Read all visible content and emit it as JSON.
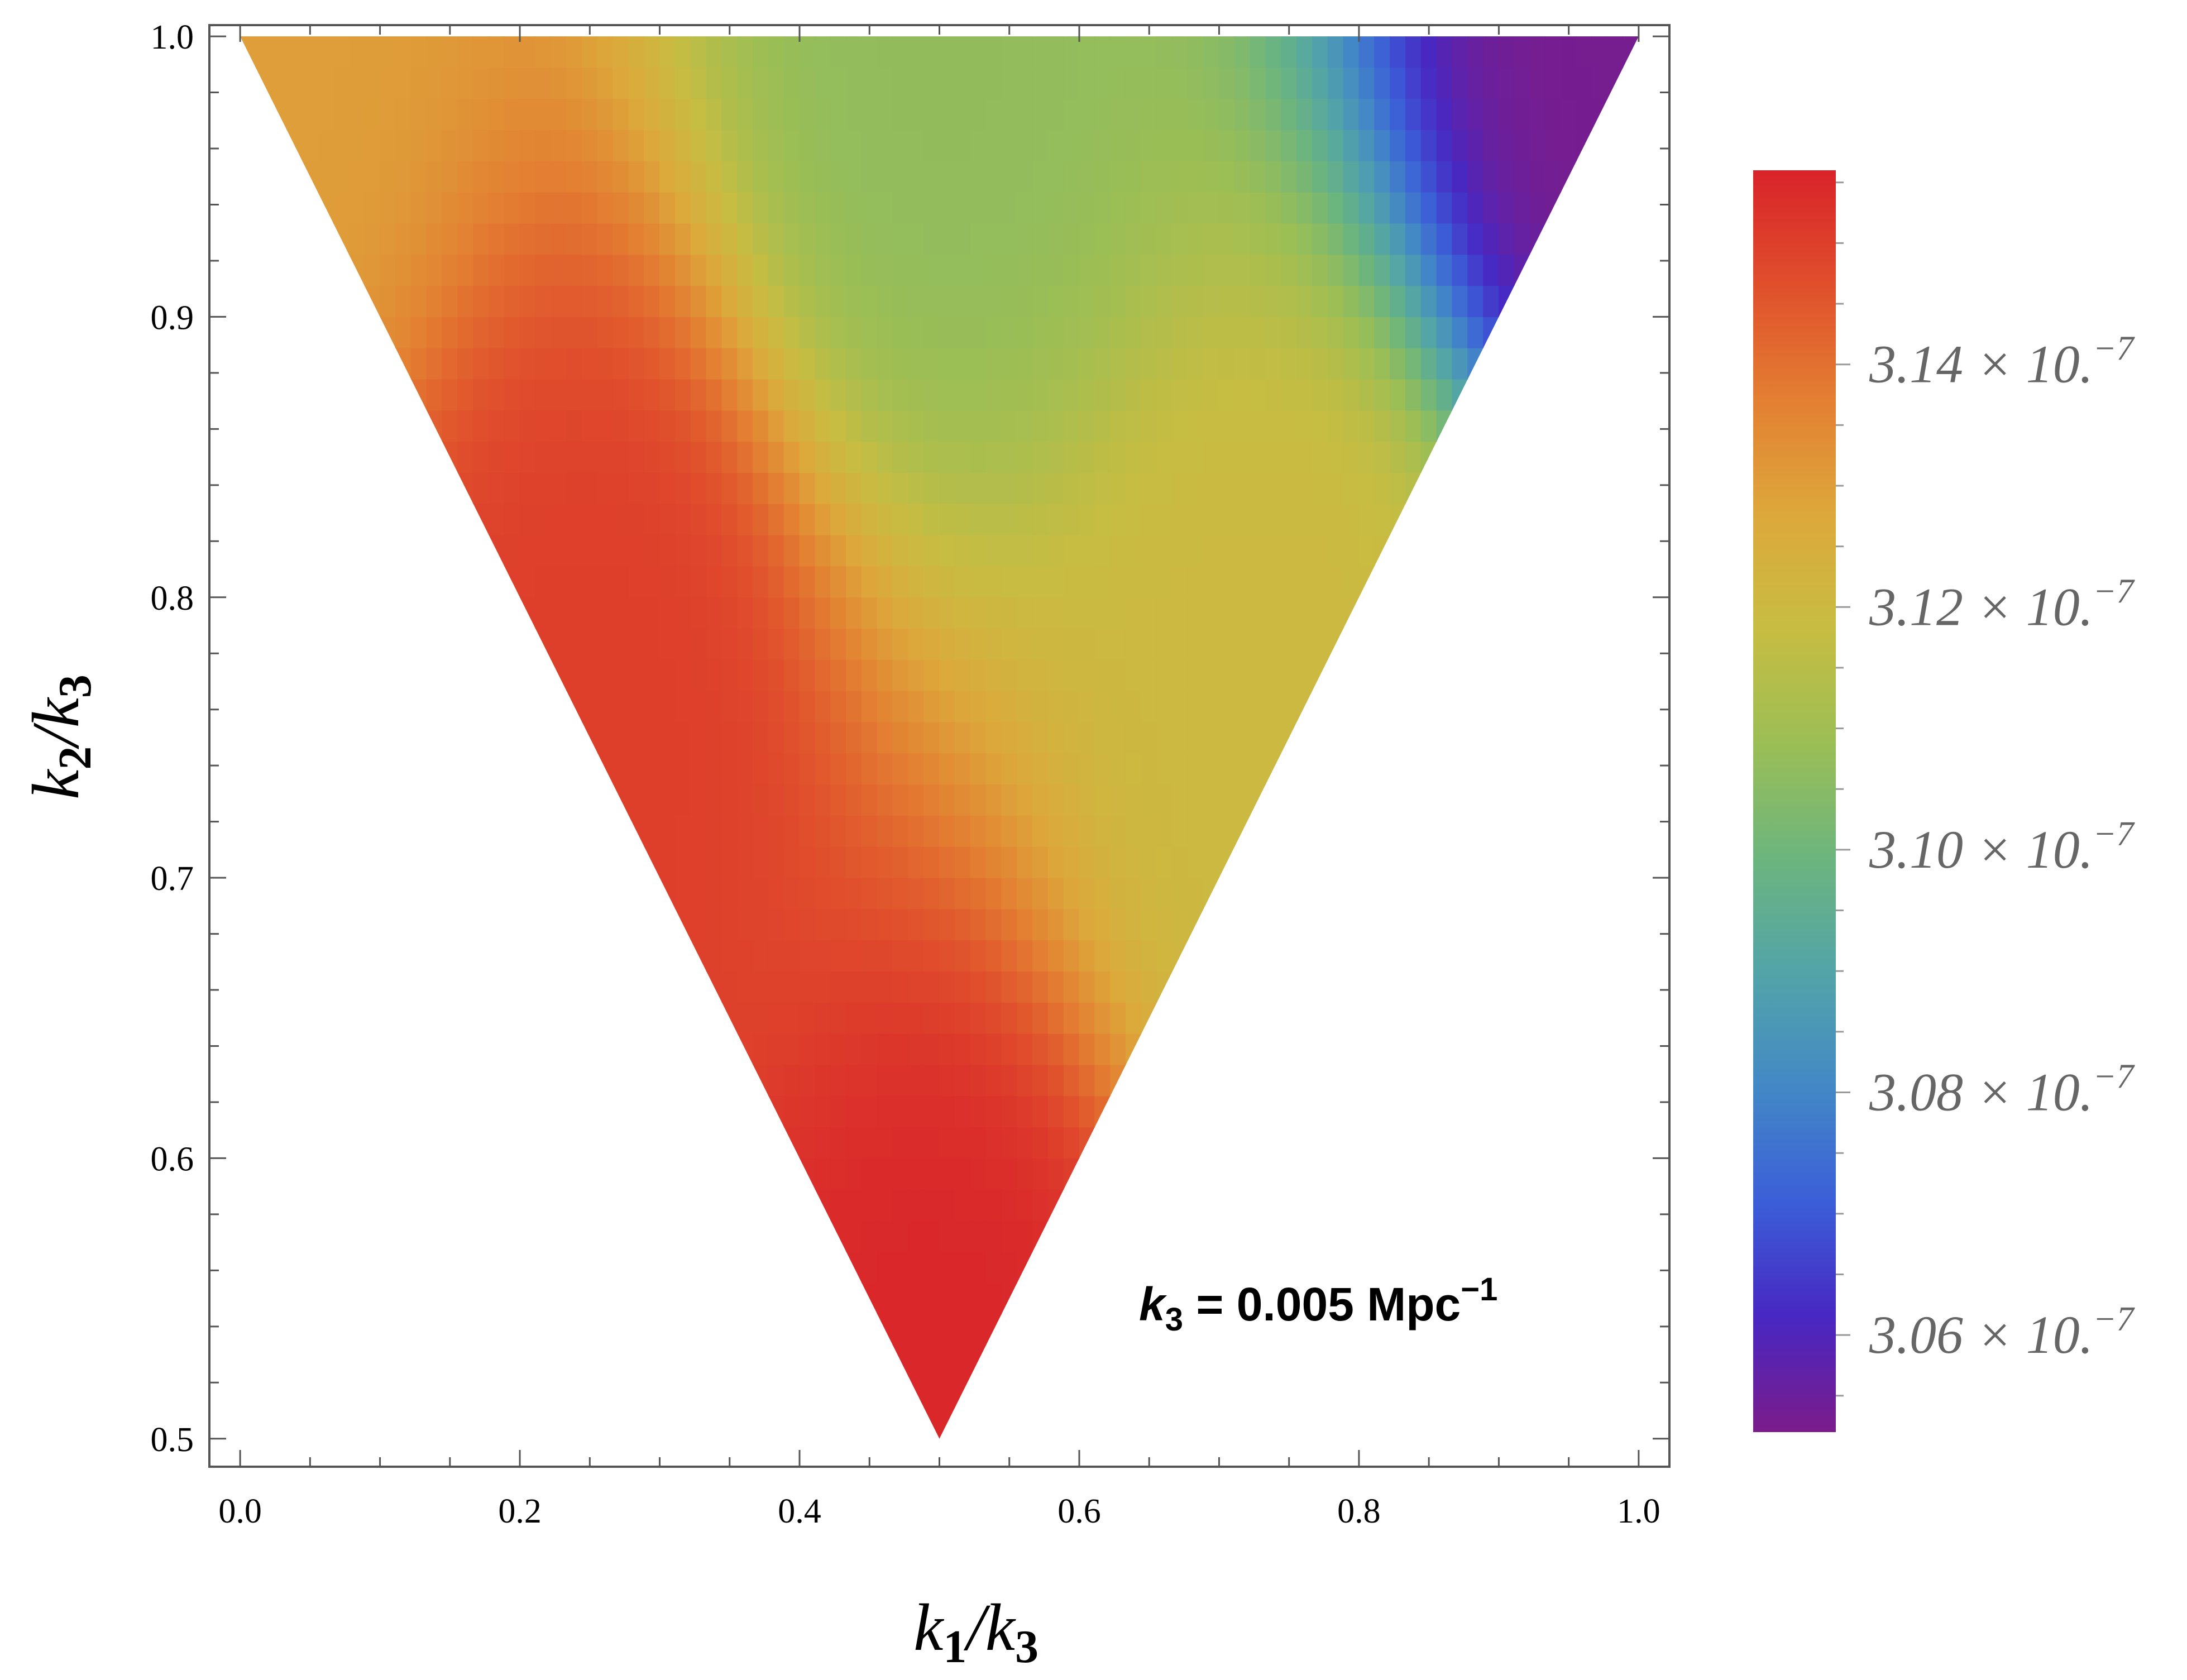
{
  "chart_data": {
    "type": "heatmap",
    "region": "triangle with vertices (0,1), (1,1), (0.5,0.5)",
    "xlabel": "k1/k3",
    "ylabel": "k2/k3",
    "xlim": [
      -0.022,
      1.022
    ],
    "ylim": [
      0.49,
      1.004
    ],
    "xticks": [
      0.0,
      0.2,
      0.4,
      0.6,
      0.8,
      1.0
    ],
    "xtick_labels": [
      "0.0",
      "0.2",
      "0.4",
      "0.6",
      "0.8",
      "1.0"
    ],
    "yticks": [
      0.5,
      0.6,
      0.7,
      0.8,
      0.9,
      1.0
    ],
    "ytick_labels": [
      "0.5",
      "0.6",
      "0.7",
      "0.8",
      "0.9",
      "1.0"
    ],
    "annotation": {
      "var": "k",
      "sub": "3",
      "eq": " = 0.005 Mpc",
      "sup": "−1"
    },
    "grid": false,
    "sample_values": [
      {
        "x": 0.0,
        "y": 1.0,
        "value": 3.13e-07
      },
      {
        "x": 0.5,
        "y": 1.0,
        "value": 3.107e-07
      },
      {
        "x": 1.0,
        "y": 1.0,
        "value": 3.053e-07
      },
      {
        "x": 0.5,
        "y": 0.5,
        "value": 3.155e-07
      },
      {
        "x": 0.25,
        "y": 0.75,
        "value": 3.15e-07
      },
      {
        "x": 0.75,
        "y": 0.75,
        "value": 3.12e-07
      }
    ],
    "colorbar": {
      "range": [
        3.052e-07,
        3.156e-07
      ],
      "tick_values": [
        3.06e-07,
        3.08e-07,
        3.1e-07,
        3.12e-07,
        3.14e-07
      ],
      "tick_labels": [
        {
          "mant": "3.06",
          "times": " × 10.",
          "exp": "−7"
        },
        {
          "mant": "3.08",
          "times": " × 10.",
          "exp": "−7"
        },
        {
          "mant": "3.10",
          "times": " × 10.",
          "exp": "−7"
        },
        {
          "mant": "3.12",
          "times": " × 10.",
          "exp": "−7"
        },
        {
          "mant": "3.14",
          "times": " × 10.",
          "exp": "−7"
        }
      ],
      "colors": [
        "#7b1c8a",
        "#4827c2",
        "#3b5ed8",
        "#4388c6",
        "#52a4a8",
        "#6cb57e",
        "#9bbe55",
        "#c7bd42",
        "#dda83b",
        "#e37f32",
        "#e04f2c",
        "#d9232a"
      ]
    }
  }
}
